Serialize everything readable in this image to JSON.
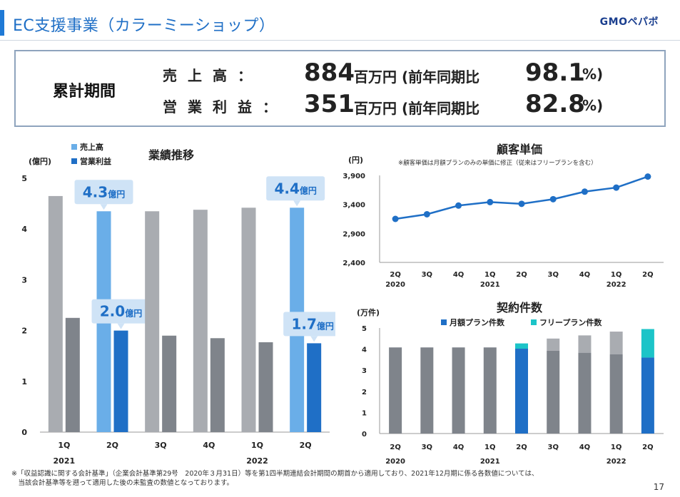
{
  "header": {
    "title": "EC支援事業（カラーミーショップ）",
    "logo": "GMOペパボ"
  },
  "summary": {
    "period_label": "累計期間",
    "rows": [
      {
        "label": "売上高：",
        "value": "884",
        "unit": "百万円 (前年同期比",
        "pct": "98.1",
        "pct_unit": "%)"
      },
      {
        "label": "営業利益：",
        "value": "351",
        "unit": "百万円 (前年同期比",
        "pct": "82.8",
        "pct_unit": "%)"
      }
    ]
  },
  "colors": {
    "gray_light": "#a9acb1",
    "gray_dark": "#7f848b",
    "blue_light": "#6aaee8",
    "blue_dark": "#1f6fc6",
    "teal": "#1cc4c8",
    "callout_bg": "#cfe3f6"
  },
  "chart_data": [
    {
      "type": "bar",
      "title": "業績推移",
      "ylabel": "(億円)",
      "ylim": [
        0,
        5
      ],
      "yticks": [
        "0",
        "1",
        "2",
        "3",
        "4",
        "5"
      ],
      "categories": [
        "1Q",
        "2Q",
        "3Q",
        "4Q",
        "1Q",
        "2Q"
      ],
      "year_labels": [
        {
          "text": "2021",
          "index": 0
        },
        {
          "text": "2022",
          "index": 4
        }
      ],
      "series": [
        {
          "name": "売上高",
          "values": [
            4.65,
            4.35,
            4.35,
            4.38,
            4.42,
            4.42
          ]
        },
        {
          "name": "営業利益",
          "values": [
            2.25,
            2.0,
            1.9,
            1.85,
            1.77,
            1.75
          ]
        }
      ],
      "highlight_indices": [
        1,
        5
      ],
      "callouts": [
        {
          "text": "4.3",
          "unit": "億円"
        },
        {
          "text": "2.0",
          "unit": "億円"
        },
        {
          "text": "4.4",
          "unit": "億円"
        },
        {
          "text": "1.7",
          "unit": "億円"
        }
      ]
    },
    {
      "type": "line",
      "title": "顧客単価",
      "ylabel": "(円)",
      "note": "※顧客単価は月額プランのみの単価に修正（従来はフリープランを含む）",
      "ylim": [
        2400,
        3900
      ],
      "yticks": [
        "2,400",
        "2,900",
        "3,400",
        "3,900"
      ],
      "categories": [
        "2Q",
        "3Q",
        "4Q",
        "1Q",
        "2Q",
        "3Q",
        "4Q",
        "1Q",
        "2Q"
      ],
      "year_labels": [
        {
          "text": "2020",
          "index": 0
        },
        {
          "text": "2021",
          "index": 3
        },
        {
          "text": "2022",
          "index": 7
        }
      ],
      "values": [
        3150,
        3230,
        3380,
        3440,
        3410,
        3490,
        3620,
        3690,
        3880
      ]
    },
    {
      "type": "bar",
      "title": "契約件数",
      "ylabel": "(万件)",
      "ylim": [
        0,
        5
      ],
      "yticks": [
        "0",
        "1",
        "2",
        "3",
        "4",
        "5"
      ],
      "categories": [
        "2Q",
        "3Q",
        "4Q",
        "1Q",
        "2Q",
        "3Q",
        "4Q",
        "1Q",
        "2Q"
      ],
      "year_labels": [
        {
          "text": "2020",
          "index": 0
        },
        {
          "text": "2021",
          "index": 3
        },
        {
          "text": "2022",
          "index": 7
        }
      ],
      "series": [
        {
          "name": "月額プラン件数",
          "values": [
            4.08,
            4.08,
            4.08,
            4.08,
            4.02,
            3.92,
            3.83,
            3.75,
            3.6
          ]
        },
        {
          "name": "フリープラン件数",
          "values": [
            0,
            0,
            0,
            0,
            0.25,
            0.58,
            0.82,
            1.08,
            1.35
          ]
        }
      ],
      "highlight_indices": [
        4,
        8
      ]
    }
  ],
  "footnote": {
    "line1": "※「収益認識に関する会計基準」（企業会計基準第29号　2020年３月31日）等を第1四半期連結会計期間の期首から適用しており、2021年12月期に係る各数値については、",
    "line2": "　当該会計基準等を遡って適用した後の未監査の数値となっております。"
  },
  "page_number": "17"
}
